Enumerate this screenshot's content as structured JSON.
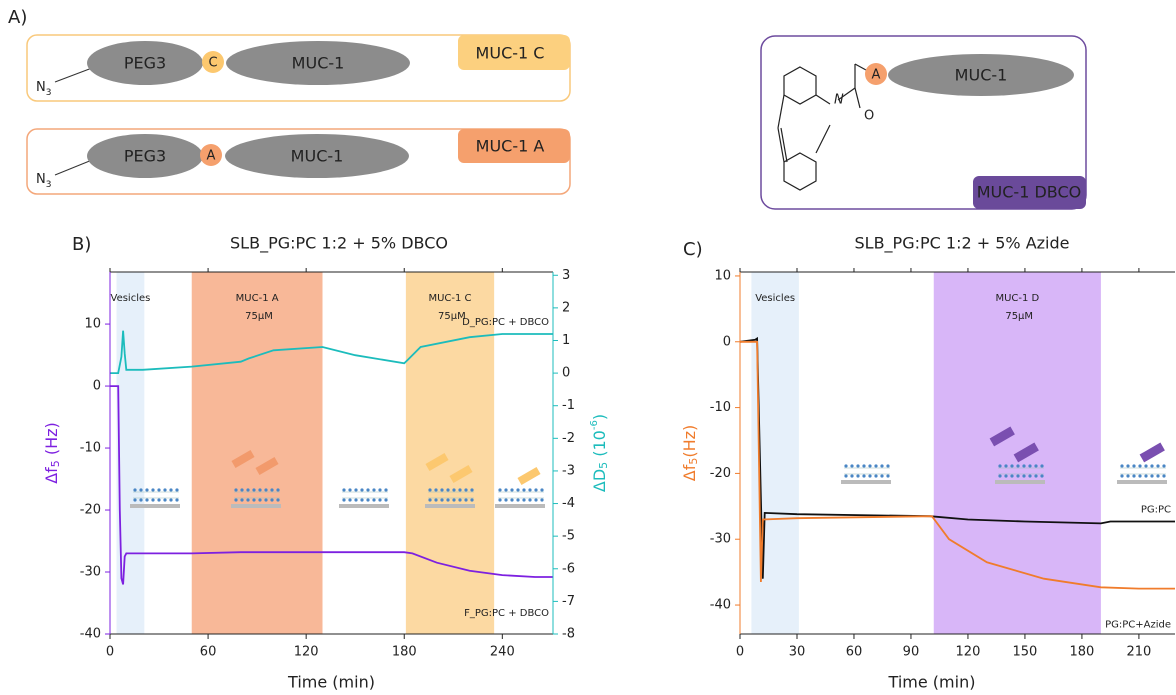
{
  "diagram": {
    "label": "A)",
    "constructs": [
      {
        "azide": "N",
        "azide_sub": "3",
        "peg": "PEG3",
        "residue": "C",
        "peptide": "MUC-1",
        "tag": "MUC-1 C"
      },
      {
        "azide": "N",
        "azide_sub": "3",
        "peg": "PEG3",
        "residue": "A",
        "peptide": "MUC-1",
        "tag": "MUC-1 A"
      }
    ],
    "dbco": {
      "residue": "A",
      "peptide": "MUC-1",
      "atoms": [
        "N",
        "O"
      ],
      "tag": "MUC-1 DBCO"
    }
  },
  "chart_data": [
    {
      "type": "line",
      "label": "B)",
      "title": "SLB_PG:PC 1:2 + 5% DBCO",
      "xlabel": "Time (min)",
      "ylabel": [
        "Δf",
        "5",
        " (Hz)"
      ],
      "y2label": [
        "ΔD",
        "5",
        " (10",
        "-6",
        ")"
      ],
      "xlim": [
        0,
        271
      ],
      "xticks": [
        0,
        60,
        120,
        180,
        240
      ],
      "ylim": [
        -40,
        18.4
      ],
      "yticks": [
        -40,
        -30,
        -20,
        -10,
        0,
        10
      ],
      "ycolor": "#7d20e0",
      "y2lim": [
        -8,
        3.1
      ],
      "y2ticks": [
        -8,
        -7,
        -6,
        -5,
        -4,
        -3,
        -2,
        -1,
        0,
        1,
        2,
        3
      ],
      "y2color": "#1cbcbc",
      "regions": [
        {
          "x0": 4,
          "x1": 21,
          "color": "#e6f0fa",
          "label": "Vesicles"
        },
        {
          "x0": 50,
          "x1": 130,
          "color": "#f8b898",
          "label": "MUC-1 A",
          "sublabel": "75μM"
        },
        {
          "x0": 181,
          "x1": 235,
          "color": "#fcd9a2",
          "label": "MUC-1 C",
          "sublabel": "75μM"
        }
      ],
      "series": [
        {
          "name": "D_PG:PC + DBCO",
          "color": "#1cbcbc",
          "axis": "y2",
          "x": [
            0,
            5,
            7,
            8,
            9,
            10,
            20,
            50,
            80,
            85,
            100,
            130,
            150,
            180,
            182,
            190,
            220,
            240,
            271
          ],
          "values": [
            0,
            0,
            0.5,
            1.3,
            0.6,
            0.1,
            0.1,
            0.2,
            0.35,
            0.45,
            0.7,
            0.8,
            0.55,
            0.3,
            0.4,
            0.8,
            1.1,
            1.2,
            1.2
          ]
        },
        {
          "name": "F_PG:PC + DBCO",
          "color": "#7d20e0",
          "x": [
            0,
            5,
            6,
            7,
            8,
            9,
            10,
            12,
            20,
            50,
            80,
            130,
            180,
            185,
            200,
            220,
            240,
            260,
            271
          ],
          "values": [
            0,
            0,
            -20,
            -31,
            -32,
            -27.5,
            -27,
            -27,
            -27,
            -27,
            -26.8,
            -26.8,
            -26.8,
            -27,
            -28.5,
            -29.8,
            -30.5,
            -30.8,
            -30.8
          ]
        }
      ]
    },
    {
      "type": "line",
      "label": "C)",
      "title": "SLB_PG:PC 1:2 + 5% Azide",
      "xlabel": "Time (min)",
      "ylabel": [
        "Δf",
        "5",
        "(Hz)"
      ],
      "xlim": [
        0,
        229
      ],
      "xticks": [
        0,
        30,
        60,
        90,
        120,
        150,
        180,
        210
      ],
      "ylim": [
        -44.4,
        10.6
      ],
      "yticks": [
        -40,
        -30,
        -20,
        -10,
        0,
        10
      ],
      "ycolor": "#f07c2c",
      "regions": [
        {
          "x0": 6,
          "x1": 31,
          "color": "#e6f0fa",
          "label": "Vesicles"
        },
        {
          "x0": 102,
          "x1": 190,
          "color": "#d8b6f8",
          "label": "MUC-1 D",
          "sublabel": "75μM"
        }
      ],
      "series": [
        {
          "name": "PG:PC",
          "color": "#111111",
          "x": [
            0,
            8,
            9,
            12,
            13,
            30,
            100,
            120,
            150,
            190,
            195,
            229
          ],
          "values": [
            0,
            0.3,
            0.5,
            -36,
            -26,
            -26.2,
            -26.5,
            -27,
            -27.3,
            -27.6,
            -27.3,
            -27.3
          ]
        },
        {
          "name": "PG:PC+Azide",
          "color": "#f07c2c",
          "x": [
            0,
            8,
            9,
            11,
            12,
            30,
            101,
            110,
            130,
            160,
            190,
            210,
            229
          ],
          "values": [
            0,
            0,
            0,
            -36.5,
            -27,
            -26.8,
            -26.5,
            -30,
            -33.5,
            -36,
            -37.3,
            -37.5,
            -37.5
          ]
        }
      ]
    }
  ]
}
